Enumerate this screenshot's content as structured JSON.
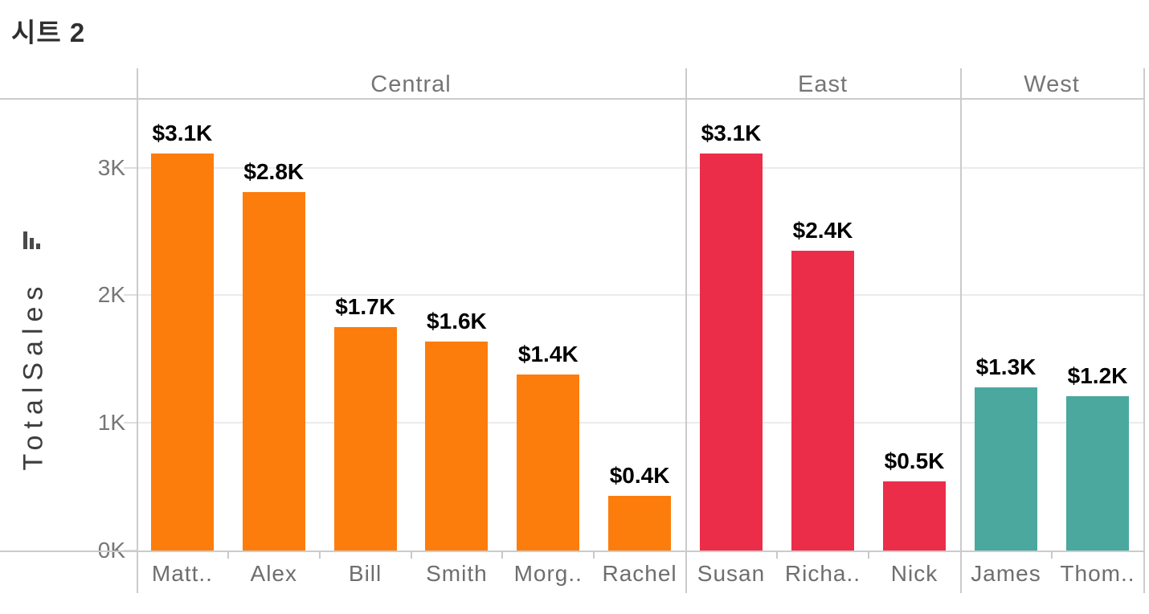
{
  "sheet": {
    "title": "시트 2"
  },
  "y_axis": {
    "label": "TotalSales",
    "sort_icon": "sort-descending-icon",
    "ticks": [
      "0K",
      "1K",
      "2K",
      "3K"
    ]
  },
  "chart_data": {
    "type": "bar",
    "title": "시트 2",
    "xlabel": "",
    "ylabel": "TotalSales",
    "ylim_k": [
      0,
      3.55
    ],
    "ytick_values_k": [
      0,
      1,
      2,
      3
    ],
    "ytick_labels": [
      "0K",
      "1K",
      "2K",
      "3K"
    ],
    "grid": "horizontal",
    "legend": "none",
    "groups": [
      {
        "region": "Central",
        "color": "#FC7D0B",
        "bars": [
          {
            "name": "Matt..",
            "label": "$3.1K",
            "value_k": 3.11
          },
          {
            "name": "Alex",
            "label": "$2.8K",
            "value_k": 2.81
          },
          {
            "name": "Bill",
            "label": "$1.7K",
            "value_k": 1.75
          },
          {
            "name": "Smith",
            "label": "$1.6K",
            "value_k": 1.64
          },
          {
            "name": "Morg..",
            "label": "$1.4K",
            "value_k": 1.38
          },
          {
            "name": "Rachel",
            "label": "$0.4K",
            "value_k": 0.43
          }
        ]
      },
      {
        "region": "East",
        "color": "#EC2D49",
        "bars": [
          {
            "name": "Susan",
            "label": "$3.1K",
            "value_k": 3.11
          },
          {
            "name": "Richa..",
            "label": "$2.4K",
            "value_k": 2.35
          },
          {
            "name": "Nick",
            "label": "$0.5K",
            "value_k": 0.54
          }
        ]
      },
      {
        "region": "West",
        "color": "#4AA89F",
        "bars": [
          {
            "name": "James",
            "label": "$1.3K",
            "value_k": 1.28
          },
          {
            "name": "Thom..",
            "label": "$1.2K",
            "value_k": 1.21
          }
        ]
      }
    ]
  },
  "colors": {
    "central_bar": "#FC7D0B",
    "east_bar": "#EC2D49",
    "west_bar": "#4AA89F",
    "panel_border": "#cbcbcb",
    "gridline": "#ebebeb",
    "value_label": "#000000",
    "axis_text": "#767676"
  }
}
